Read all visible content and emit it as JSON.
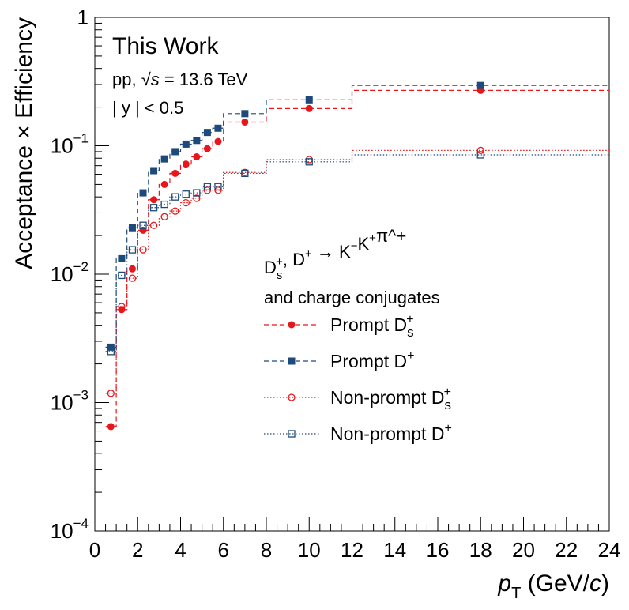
{
  "chart_data": {
    "type": "scatter",
    "xlabel": "p_T (GeV/c)",
    "ylabel": "Acceptance × Efficiency",
    "xlim": [
      0,
      24
    ],
    "ylim": [
      0.0001,
      1
    ],
    "yscale": "log",
    "grid": false,
    "x_ticks": [
      "0",
      "2",
      "4",
      "6",
      "8",
      "10",
      "12",
      "14",
      "16",
      "18",
      "20",
      "22",
      "24"
    ],
    "y_ticks": [
      {
        "base": "10",
        "exp": "−4"
      },
      {
        "base": "10",
        "exp": "−3"
      },
      {
        "base": "10",
        "exp": "−2"
      },
      {
        "base": "10",
        "exp": "−1"
      },
      {
        "base": "1",
        "exp": ""
      }
    ],
    "annotations": {
      "title": "This Work",
      "system_prefix": "pp, ",
      "system_suffix": " = 13.6 TeV",
      "rapidity": "| y | < 0.5"
    },
    "legend": {
      "placement": "center-right",
      "header_line1": "D_s^+, D^+ → K^−K^+π^+",
      "header_line2": "and charge conjugates"
    },
    "series": [
      {
        "name": "Prompt D_s^+",
        "color": "#e8161a",
        "marker": "filled-circle",
        "line": "dashed",
        "bins": [
          0.5,
          1,
          1.5,
          2,
          2.5,
          3,
          3.5,
          4,
          4.5,
          5,
          5.5,
          6,
          8,
          12,
          24
        ],
        "x": [
          0.75,
          1.25,
          1.75,
          2.25,
          2.75,
          3.25,
          3.75,
          4.25,
          4.75,
          5.25,
          5.75,
          7,
          10,
          18
        ],
        "y": [
          0.00065,
          0.0053,
          0.011,
          0.022,
          0.038,
          0.05,
          0.061,
          0.072,
          0.082,
          0.095,
          0.108,
          0.153,
          0.195,
          0.27
        ]
      },
      {
        "name": "Prompt D^+",
        "color": "#1d4a7a",
        "marker": "filled-square",
        "line": "dashed",
        "bins": [
          0.5,
          1,
          1.5,
          2,
          2.5,
          3,
          3.5,
          4,
          4.5,
          5,
          5.5,
          6,
          8,
          12,
          24
        ],
        "x": [
          0.75,
          1.25,
          1.75,
          2.25,
          2.75,
          3.25,
          3.75,
          4.25,
          4.75,
          5.25,
          5.75,
          7,
          10,
          18
        ],
        "y": [
          0.0027,
          0.0132,
          0.023,
          0.043,
          0.064,
          0.079,
          0.09,
          0.103,
          0.11,
          0.127,
          0.137,
          0.178,
          0.228,
          0.295
        ]
      },
      {
        "name": "Non-prompt D_s^+",
        "color": "#e8161a",
        "marker": "open-circle",
        "line": "dotted",
        "bins": [
          0.5,
          1,
          1.5,
          2,
          2.5,
          3,
          3.5,
          4,
          4.5,
          5,
          5.5,
          6,
          8,
          12,
          24
        ],
        "x": [
          0.75,
          1.25,
          1.75,
          2.25,
          2.75,
          3.25,
          3.75,
          4.25,
          4.75,
          5.25,
          5.75,
          7,
          10,
          18
        ],
        "y": [
          0.00118,
          0.0056,
          0.0093,
          0.0155,
          0.024,
          0.028,
          0.031,
          0.036,
          0.039,
          0.045,
          0.045,
          0.062,
          0.078,
          0.092
        ]
      },
      {
        "name": "Non-prompt D^+",
        "color": "#1d4a7a",
        "marker": "open-square",
        "line": "dotted",
        "bins": [
          0.5,
          1,
          1.5,
          2,
          2.5,
          3,
          3.5,
          4,
          4.5,
          5,
          5.5,
          6,
          8,
          12,
          24
        ],
        "x": [
          0.75,
          1.25,
          1.75,
          2.25,
          2.75,
          3.25,
          3.75,
          4.25,
          4.75,
          5.25,
          5.75,
          7,
          10,
          18
        ],
        "y": [
          0.0025,
          0.0098,
          0.0155,
          0.024,
          0.033,
          0.035,
          0.04,
          0.042,
          0.043,
          0.048,
          0.048,
          0.061,
          0.075,
          0.085
        ]
      }
    ]
  }
}
